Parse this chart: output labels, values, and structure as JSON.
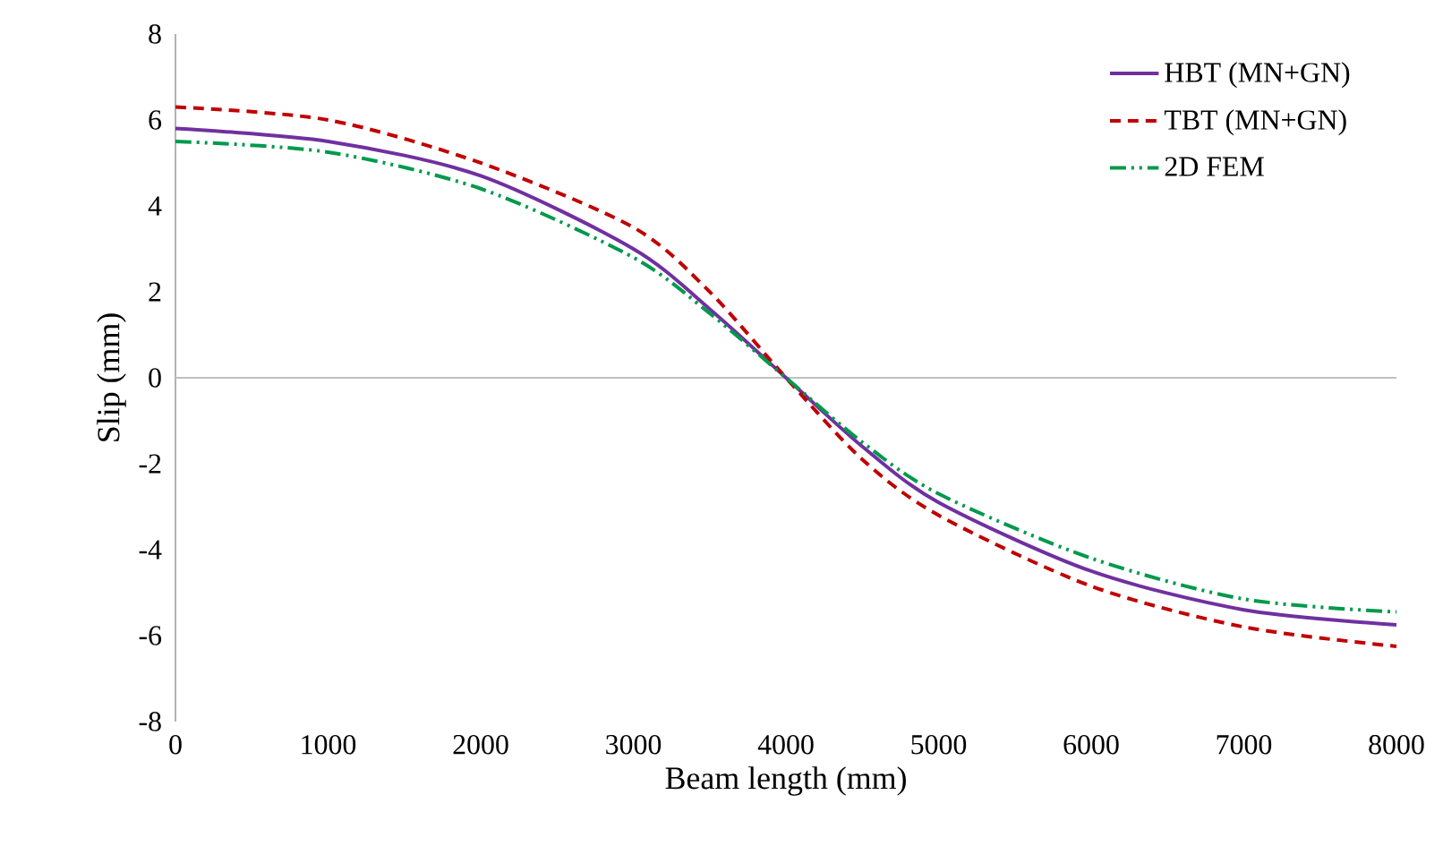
{
  "chart_data": {
    "type": "line",
    "xlabel": "Beam length (mm)",
    "ylabel": "Slip (mm)",
    "x": [
      0,
      1000,
      2000,
      3000,
      3500,
      4000,
      4500,
      5000,
      6000,
      7000,
      8000
    ],
    "series": [
      {
        "name": "HBT (MN+GN)",
        "color": "#7030a0",
        "line_style": "solid",
        "values": [
          5.8,
          5.5,
          4.7,
          3.0,
          1.6,
          0,
          -1.6,
          -2.9,
          -4.5,
          -5.4,
          -5.75
        ]
      },
      {
        "name": "TBT (MN+GN)",
        "color": "#c00000",
        "line_style": "dashed",
        "values": [
          6.3,
          6.0,
          5.0,
          3.5,
          2.0,
          0,
          -1.9,
          -3.2,
          -4.85,
          -5.8,
          -6.25
        ]
      },
      {
        "name": "2D FEM",
        "color": "#00994c",
        "line_style": "dashdot",
        "values": [
          5.5,
          5.25,
          4.4,
          2.8,
          1.5,
          0,
          -1.5,
          -2.7,
          -4.2,
          -5.15,
          -5.45
        ]
      }
    ],
    "xlim": [
      0,
      8000
    ],
    "ylim": [
      -8,
      8
    ],
    "xticks": [
      0,
      1000,
      2000,
      3000,
      4000,
      5000,
      6000,
      7000,
      8000
    ],
    "yticks": [
      -8,
      -6,
      -4,
      -2,
      0,
      2,
      4,
      6,
      8
    ],
    "ref_lines": [
      {
        "axis": "y",
        "value": 0,
        "color": "#bfbfbf"
      }
    ],
    "legend": "top right",
    "grid": false,
    "marker": "none"
  }
}
